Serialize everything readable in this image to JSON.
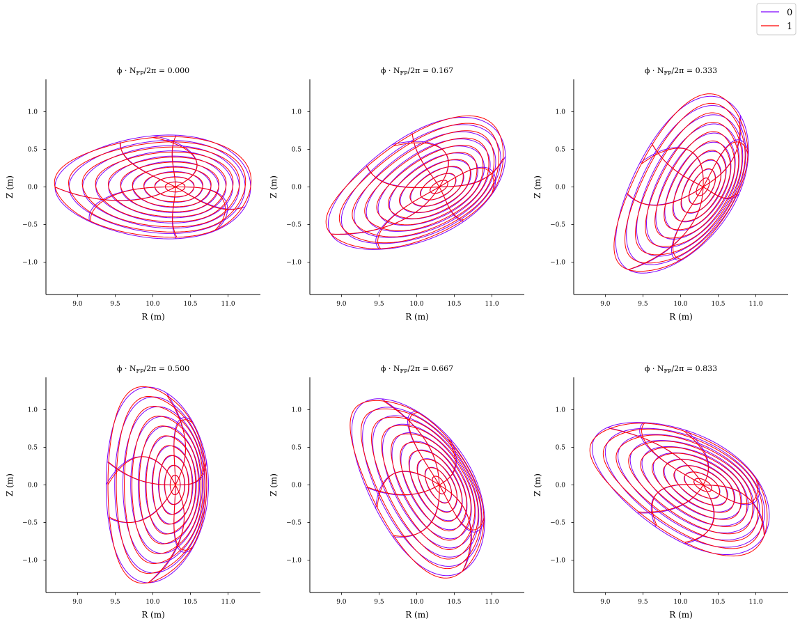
{
  "chart_data": {
    "type": "line",
    "description_free": true,
    "legend": {
      "placement": "top-right",
      "entries": [
        {
          "label": "0",
          "color": "#7f00ff"
        },
        {
          "label": "1",
          "color": "#ff0000"
        }
      ]
    },
    "xlabel": "R (m)",
    "ylabel": "Z (m)",
    "xlim": [
      8.58,
      11.43
    ],
    "ylim": [
      -1.43,
      1.43
    ],
    "xticks": [
      9.0,
      9.5,
      10.0,
      10.5,
      11.0
    ],
    "xtick_labels": [
      "9.0",
      "9.5",
      "10.0",
      "10.5",
      "11.0"
    ],
    "yticks": [
      -1.0,
      -0.5,
      0.0,
      0.5,
      1.0
    ],
    "ytick_labels": [
      "−1.0",
      "−0.5",
      "0.0",
      "0.5",
      "1.0"
    ],
    "grid": false,
    "panels": [
      {
        "title_prefix": "ϕ · N",
        "title_sub": "FP",
        "title_suffix": "/2π = 0.000",
        "phase": 0.0
      },
      {
        "title_prefix": "ϕ · N",
        "title_sub": "FP",
        "title_suffix": "/2π = 0.167",
        "phase": 0.167
      },
      {
        "title_prefix": "ϕ · N",
        "title_sub": "FP",
        "title_suffix": "/2π = 0.333",
        "phase": 0.333
      },
      {
        "title_prefix": "ϕ · N",
        "title_sub": "FP",
        "title_suffix": "/2π = 0.500",
        "phase": 0.5
      },
      {
        "title_prefix": "ϕ · N",
        "title_sub": "FP",
        "title_suffix": "/2π = 0.667",
        "phase": 0.667
      },
      {
        "title_prefix": "ϕ · N",
        "title_sub": "FP",
        "title_suffix": "/2π = 0.833",
        "phase": 0.833
      }
    ],
    "surfaces": {
      "axis_R": 10.3,
      "major_R": 10.0,
      "boundary_a": 1.3,
      "boundary_b": 0.68,
      "rho": [
        0.1,
        0.2,
        0.3,
        0.4,
        0.5,
        0.6,
        0.7,
        0.8,
        0.9,
        1.0
      ],
      "theta_lines": 8,
      "series_perturbation": [
        0.0,
        0.035
      ]
    }
  }
}
